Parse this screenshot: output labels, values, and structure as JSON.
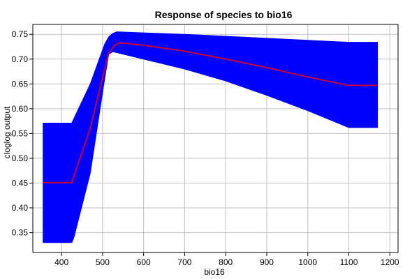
{
  "chart_data": {
    "type": "area",
    "title": "Response of species to bio16",
    "xlabel": "bio16",
    "ylabel": "cloglog output",
    "xlim": [
      330,
      1220
    ],
    "ylim": [
      0.31,
      0.77
    ],
    "x_ticks": [
      400,
      500,
      600,
      700,
      800,
      900,
      1000,
      1100,
      1200
    ],
    "y_ticks": [
      0.35,
      0.4,
      0.45,
      0.5,
      0.55,
      0.6,
      0.65,
      0.7,
      0.75
    ],
    "x_tick_labels": [
      "400",
      "500",
      "600",
      "700",
      "800",
      "900",
      "1000",
      "1100",
      "1200"
    ],
    "y_tick_labels": [
      "0.35",
      "0.40",
      "0.45",
      "0.50",
      "0.55",
      "0.60",
      "0.65",
      "0.70",
      "0.75"
    ],
    "grid": true,
    "series": [
      {
        "kind": "band",
        "color": "#0000ff",
        "x": [
          355,
          425,
          430,
          470,
          505,
          515,
          525,
          535,
          600,
          700,
          800,
          900,
          1000,
          1100,
          1170
        ],
        "upper": [
          0.571,
          0.571,
          0.58,
          0.65,
          0.73,
          0.745,
          0.752,
          0.755,
          0.753,
          0.75,
          0.746,
          0.742,
          0.738,
          0.734,
          0.734
        ],
        "lower": [
          0.33,
          0.33,
          0.34,
          0.47,
          0.66,
          0.71,
          0.715,
          0.713,
          0.7,
          0.68,
          0.656,
          0.627,
          0.596,
          0.562,
          0.562
        ]
      },
      {
        "kind": "line",
        "color": "#cc0033",
        "x": [
          355,
          425,
          470,
          505,
          515,
          530,
          540,
          600,
          700,
          800,
          900,
          1000,
          1100,
          1170
        ],
        "y": [
          0.451,
          0.451,
          0.56,
          0.68,
          0.712,
          0.728,
          0.733,
          0.728,
          0.716,
          0.7,
          0.683,
          0.664,
          0.647,
          0.647
        ]
      }
    ]
  }
}
